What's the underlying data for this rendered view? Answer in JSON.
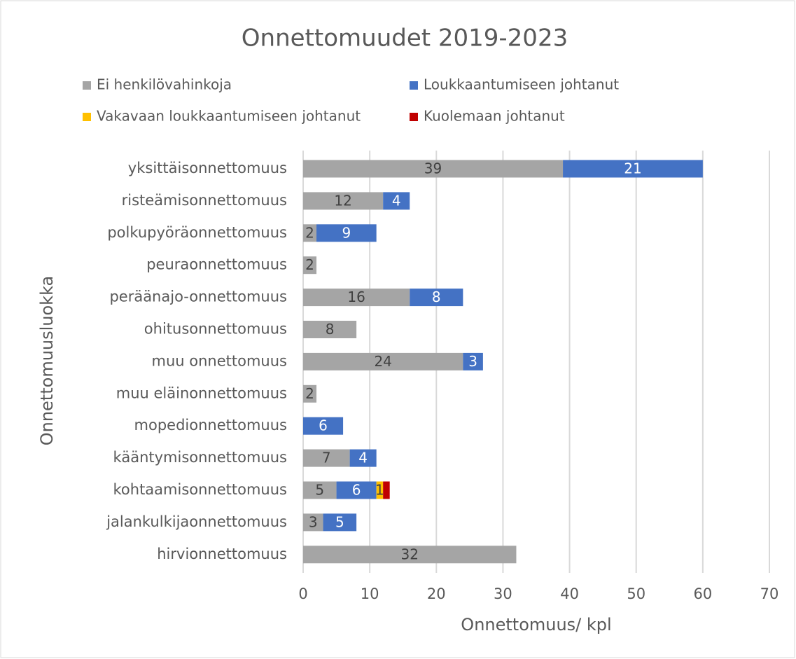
{
  "chart_data": {
    "type": "stacked-bar-horizontal",
    "title": "Onnettomuudet 2019-2023",
    "x_label": "Onnettomuus/ kpl",
    "y_label": "Onnettomuusluokka",
    "categories": [
      "yksittäisonnettomuus",
      "risteämisonnettomuus",
      "polkupyöräonnettomuus",
      "peuraonnettomuus",
      "peräänajo-onnettomuus",
      "ohitusonnettomuus",
      "muu onnettomuus",
      "muu eläinonnettomuus",
      "mopedionnettomuus",
      "kääntymisonnettomuus",
      "kohtaamisonnettomuus",
      "jalankulkijaonnettomuus",
      "hirvionnettomuus"
    ],
    "series": [
      {
        "name": "Ei henkilövahinkoja",
        "color": "#a5a5a5",
        "values": [
          39,
          12,
          2,
          2,
          16,
          8,
          24,
          2,
          null,
          7,
          5,
          3,
          32
        ]
      },
      {
        "name": "Loukkaantumiseen johtanut",
        "color": "#4472c4",
        "values": [
          21,
          4,
          9,
          null,
          8,
          null,
          3,
          null,
          6,
          4,
          6,
          5,
          null
        ]
      },
      {
        "name": "Vakavaan loukkaantumiseen johtanut",
        "color": "#ffc000",
        "values": [
          null,
          null,
          null,
          null,
          null,
          null,
          null,
          null,
          null,
          null,
          1,
          null,
          null
        ]
      },
      {
        "name": "Kuolemaan johtanut",
        "color": "#c00000",
        "values": [
          null,
          null,
          null,
          null,
          null,
          null,
          null,
          null,
          null,
          null,
          1,
          null,
          null
        ]
      }
    ],
    "xlim": [
      0,
      70
    ],
    "xticks": [
      0,
      10,
      20,
      30,
      40,
      50,
      60,
      70
    ],
    "grid": true,
    "legend": "top"
  }
}
